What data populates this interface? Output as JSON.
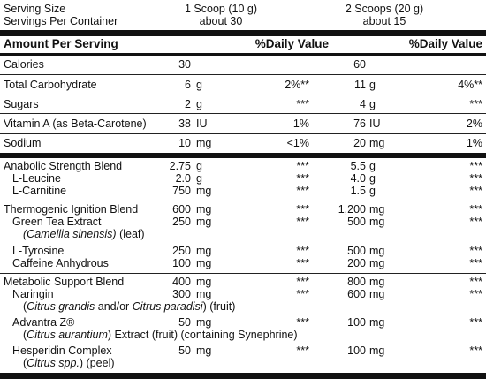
{
  "header": {
    "serving_size_label": "Serving Size",
    "servings_per_container_label": "Servings Per Container",
    "col1_size": "1 Scoop (10 g)",
    "col1_servings": "about 30",
    "col2_size": "2 Scoops (20 g)",
    "col2_servings": "about 15"
  },
  "columns": {
    "amount_per_serving": "Amount Per Serving",
    "dv1": "%Daily Value",
    "dv2": "%Daily Value"
  },
  "rows": [
    {
      "name": "Calories",
      "a1": "30",
      "u1": "",
      "d1": "",
      "a2": "60",
      "u2": "",
      "d2": ""
    },
    {
      "name": "Total Carbohydrate",
      "a1": "6",
      "u1": "g",
      "d1": "2%**",
      "a2": "11",
      "u2": "g",
      "d2": "4%**"
    },
    {
      "name": "Sugars",
      "a1": "2",
      "u1": "g",
      "d1": "***",
      "a2": "4",
      "u2": "g",
      "d2": "***"
    },
    {
      "name": "Vitamin A (as Beta-Carotene)",
      "a1": "38",
      "u1": "IU",
      "d1": "1%",
      "a2": "76",
      "u2": "IU",
      "d2": "2%"
    },
    {
      "name": "Sodium",
      "a1": "10",
      "u1": "mg",
      "d1": "<1%",
      "a2": "20",
      "u2": "mg",
      "d2": "1%"
    }
  ],
  "blends": [
    {
      "name": "Anabolic Strength Blend",
      "a1": "2.75",
      "u1": "g",
      "d1": "***",
      "a2": "5.5",
      "u2": "g",
      "d2": "***",
      "items": [
        {
          "name": "L-Leucine",
          "a1": "2.0",
          "u1": "g",
          "d1": "***",
          "a2": "4.0",
          "u2": "g",
          "d2": "***"
        },
        {
          "name": "L-Carnitine",
          "a1": "750",
          "u1": "mg",
          "d1": "***",
          "a2": "1.5",
          "u2": "g",
          "d2": "***"
        }
      ]
    },
    {
      "name": "Thermogenic Ignition Blend",
      "a1": "600",
      "u1": "mg",
      "d1": "***",
      "a2": "1,200",
      "u2": "mg",
      "d2": "***",
      "items": [
        {
          "name": "Green Tea Extract",
          "a1": "250",
          "u1": "mg",
          "d1": "***",
          "a2": "500",
          "u2": "mg",
          "d2": "***"
        },
        {
          "name": "L-Tyrosine",
          "a1": "250",
          "u1": "mg",
          "d1": "***",
          "a2": "500",
          "u2": "mg",
          "d2": "***"
        },
        {
          "name": "Caffeine Anhydrous",
          "a1": "100",
          "u1": "mg",
          "d1": "***",
          "a2": "200",
          "u2": "mg",
          "d2": "***"
        }
      ],
      "green_tea_sub_italic": "(Camellia sinensis)",
      "green_tea_sub_rest": " (leaf)"
    },
    {
      "name": "Metabolic Support Blend",
      "a1": "400",
      "u1": "mg",
      "d1": "***",
      "a2": "800",
      "u2": "mg",
      "d2": "***",
      "items": [
        {
          "name": "Naringin",
          "a1": "300",
          "u1": "mg",
          "d1": "***",
          "a2": "600",
          "u2": "mg",
          "d2": "***"
        },
        {
          "name": "Advantra Z®",
          "a1": "50",
          "u1": "mg",
          "d1": "***",
          "a2": "100",
          "u2": "mg",
          "d2": "***"
        },
        {
          "name": "Hesperidin Complex",
          "a1": "50",
          "u1": "mg",
          "d1": "***",
          "a2": "100",
          "u2": "mg",
          "d2": "***"
        }
      ],
      "naringin_sub": {
        "p1": "(",
        "i1": "Citrus grandis",
        "p2": " and/or ",
        "i2": "Citrus paradisi",
        "p3": ") (fruit)"
      },
      "advantra_sub": {
        "p1": "(",
        "i1": "Citrus aurantium",
        "p2": ") Extract (fruit) (containing Synephrine)"
      },
      "hesperidin_sub": {
        "p1": "(",
        "i1": "Citrus spp.",
        "p2": ") (peel)"
      }
    }
  ]
}
